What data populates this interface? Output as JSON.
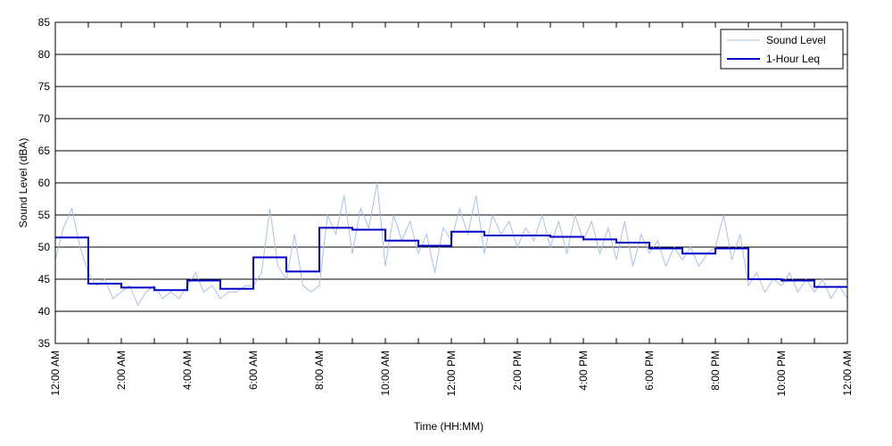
{
  "chart_data": {
    "type": "line",
    "title": "",
    "xlabel": "Time (HH:MM)",
    "ylabel": "Sound Level (dBA)",
    "xlim": [
      0,
      24
    ],
    "ylim": [
      35,
      85
    ],
    "y_ticks": [
      35,
      40,
      45,
      50,
      55,
      60,
      65,
      70,
      75,
      80,
      85
    ],
    "x_ticks": [
      0,
      1,
      2,
      3,
      4,
      5,
      6,
      7,
      8,
      9,
      10,
      11,
      12,
      13,
      14,
      15,
      16,
      17,
      18,
      19,
      20,
      21,
      22,
      23,
      24
    ],
    "x_tick_labels": [
      {
        "x": 0,
        "label": "12:00 AM"
      },
      {
        "x": 2,
        "label": "2:00 AM"
      },
      {
        "x": 4,
        "label": "4:00 AM"
      },
      {
        "x": 6,
        "label": "6:00 AM"
      },
      {
        "x": 8,
        "label": "8:00 AM"
      },
      {
        "x": 10,
        "label": "10:00 AM"
      },
      {
        "x": 12,
        "label": "12:00 PM"
      },
      {
        "x": 14,
        "label": "2:00 PM"
      },
      {
        "x": 16,
        "label": "4:00 PM"
      },
      {
        "x": 18,
        "label": "6:00 PM"
      },
      {
        "x": 20,
        "label": "8:00 PM"
      },
      {
        "x": 22,
        "label": "10:00 PM"
      },
      {
        "x": 24,
        "label": "12:00 AM"
      }
    ],
    "grid": "horizontal",
    "legend_position": "top-right",
    "series": [
      {
        "name": "Sound Level",
        "color": "#a8c0ee",
        "style": "thin-line",
        "x": [
          0,
          0.25,
          0.5,
          0.75,
          1,
          1.25,
          1.5,
          1.75,
          2,
          2.25,
          2.5,
          2.75,
          3,
          3.25,
          3.5,
          3.75,
          4,
          4.25,
          4.5,
          4.75,
          5,
          5.25,
          5.5,
          5.75,
          6,
          6.25,
          6.5,
          6.75,
          7,
          7.25,
          7.5,
          7.75,
          8,
          8.25,
          8.5,
          8.75,
          9,
          9.25,
          9.5,
          9.75,
          10,
          10.25,
          10.5,
          10.75,
          11,
          11.25,
          11.5,
          11.75,
          12,
          12.25,
          12.5,
          12.75,
          13,
          13.25,
          13.5,
          13.75,
          14,
          14.25,
          14.5,
          14.75,
          15,
          15.25,
          15.5,
          15.75,
          16,
          16.25,
          16.5,
          16.75,
          17,
          17.25,
          17.5,
          17.75,
          18,
          18.25,
          18.5,
          18.75,
          19,
          19.25,
          19.5,
          19.75,
          20,
          20.25,
          20.5,
          20.75,
          21,
          21.25,
          21.5,
          21.75,
          22,
          22.25,
          22.5,
          22.75,
          23,
          23.25,
          23.5,
          23.75,
          24
        ],
        "values": [
          48,
          53,
          56,
          50,
          46,
          44,
          45,
          42,
          43,
          44,
          41,
          43,
          44,
          42,
          43,
          42,
          44,
          46,
          43,
          44,
          42,
          43,
          43,
          44,
          44,
          46,
          56,
          47,
          45,
          52,
          44,
          43,
          44,
          55,
          52,
          58,
          49,
          56,
          53,
          60,
          47,
          55,
          51,
          54,
          49,
          52,
          46,
          53,
          51,
          56,
          52,
          58,
          49,
          55,
          52,
          54,
          50,
          53,
          51,
          55,
          50,
          54,
          49,
          55,
          51,
          54,
          49,
          53,
          48,
          54,
          47,
          52,
          49,
          51,
          47,
          50,
          48,
          50,
          47,
          49,
          50,
          55,
          48,
          52,
          44,
          46,
          43,
          45,
          44,
          46,
          43,
          45,
          43,
          45,
          42,
          44,
          42
        ]
      },
      {
        "name": "1-Hour Leq",
        "color": "#0000c8",
        "style": "step",
        "x": [
          0,
          1,
          2,
          3,
          4,
          5,
          6,
          7,
          8,
          9,
          10,
          11,
          12,
          13,
          14,
          15,
          16,
          17,
          18,
          19,
          20,
          21,
          22,
          23,
          24
        ],
        "values": [
          51.5,
          44.3,
          43.7,
          43.3,
          44.8,
          43.5,
          48.4,
          46.2,
          53.0,
          52.7,
          51.0,
          50.2,
          52.4,
          51.8,
          51.8,
          51.6,
          51.2,
          50.7,
          49.8,
          49.0,
          49.8,
          45.0,
          44.8,
          43.8,
          43.8
        ]
      }
    ]
  }
}
